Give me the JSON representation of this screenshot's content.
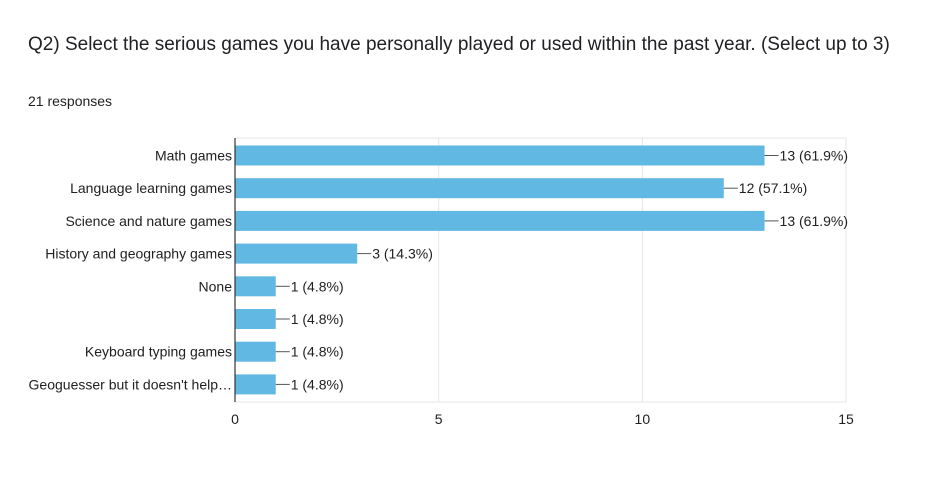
{
  "question": {
    "title": "Q2) Select the serious games you have personally played or used within the past year.   (Select up to 3)",
    "responses": "21 responses"
  },
  "colors": {
    "bar": "#61b8e2",
    "grid": "#e6e6e6",
    "axis": "#333333",
    "text": "#212121"
  },
  "chart_data": {
    "type": "bar",
    "orientation": "horizontal",
    "categories": [
      "Math games",
      "Language learning games",
      "Science and nature games",
      "History and geography games",
      "None",
      "",
      "Keyboard typing games",
      "Geoguesser but it doesn't help…"
    ],
    "values": [
      13,
      12,
      13,
      3,
      1,
      1,
      1,
      1
    ],
    "data_labels": [
      "13 (61.9%)",
      "12 (57.1%)",
      "13 (61.9%)",
      "3 (14.3%)",
      "1 (4.8%)",
      "1 (4.8%)",
      "1 (4.8%)",
      "1 (4.8%)"
    ],
    "xlim": [
      0,
      15
    ],
    "xticks": [
      0,
      5,
      10,
      15
    ],
    "grid": true,
    "legend": "none"
  }
}
